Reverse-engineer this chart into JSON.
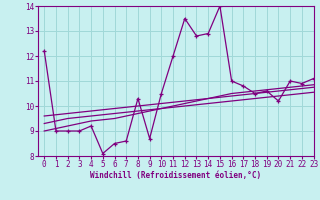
{
  "x": [
    0,
    1,
    2,
    3,
    4,
    5,
    6,
    7,
    8,
    9,
    10,
    11,
    12,
    13,
    14,
    15,
    16,
    17,
    18,
    19,
    20,
    21,
    22,
    23
  ],
  "main_line": [
    12.2,
    9.0,
    9.0,
    9.0,
    9.2,
    8.1,
    8.5,
    8.6,
    10.3,
    8.7,
    10.5,
    12.0,
    13.5,
    12.8,
    12.9,
    14.0,
    11.0,
    10.8,
    10.5,
    10.6,
    10.2,
    11.0,
    10.9,
    11.1
  ],
  "line2": [
    9.0,
    9.1,
    9.2,
    9.3,
    9.4,
    9.45,
    9.5,
    9.6,
    9.7,
    9.8,
    9.9,
    10.0,
    10.1,
    10.2,
    10.3,
    10.4,
    10.5,
    10.55,
    10.6,
    10.65,
    10.7,
    10.75,
    10.8,
    10.85
  ],
  "line3": [
    9.3,
    9.4,
    9.5,
    9.55,
    9.6,
    9.65,
    9.7,
    9.75,
    9.8,
    9.85,
    9.9,
    9.95,
    10.0,
    10.05,
    10.1,
    10.15,
    10.2,
    10.25,
    10.3,
    10.35,
    10.4,
    10.45,
    10.5,
    10.55
  ],
  "line4": [
    9.6,
    9.65,
    9.7,
    9.75,
    9.8,
    9.85,
    9.9,
    9.95,
    10.0,
    10.05,
    10.1,
    10.15,
    10.2,
    10.25,
    10.3,
    10.35,
    10.4,
    10.45,
    10.5,
    10.55,
    10.6,
    10.65,
    10.7,
    10.75
  ],
  "line_color": "#800080",
  "background_color": "#c8f0f0",
  "grid_color": "#a0d8d8",
  "xlabel": "Windchill (Refroidissement éolien,°C)",
  "ylim": [
    8,
    14
  ],
  "xlim": [
    -0.5,
    23
  ],
  "yticks": [
    8,
    9,
    10,
    11,
    12,
    13,
    14
  ],
  "xticks": [
    0,
    1,
    2,
    3,
    4,
    5,
    6,
    7,
    8,
    9,
    10,
    11,
    12,
    13,
    14,
    15,
    16,
    17,
    18,
    19,
    20,
    21,
    22,
    23
  ]
}
